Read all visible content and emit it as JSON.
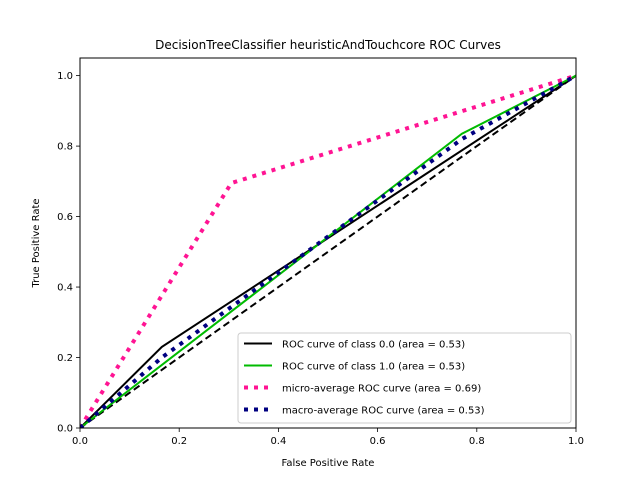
{
  "chart_data": {
    "type": "line",
    "title": "DecisionTreeClassifier heuristicAndTouchcore ROC Curves",
    "xlabel": "False Positive Rate",
    "ylabel": "True Positive Rate",
    "xlim": [
      0.0,
      1.0
    ],
    "ylim": [
      0.0,
      1.05
    ],
    "xticks": [
      0.0,
      0.2,
      0.4,
      0.6,
      0.8,
      1.0
    ],
    "yticks": [
      0.0,
      0.2,
      0.4,
      0.6,
      0.8,
      1.0
    ],
    "xtick_labels": [
      "0.0",
      "0.2",
      "0.4",
      "0.6",
      "0.8",
      "1.0"
    ],
    "ytick_labels": [
      "0.0",
      "0.2",
      "0.4",
      "0.6",
      "0.8",
      "1.0"
    ],
    "grid": false,
    "legend_position": "lower-right",
    "series": [
      {
        "name": "ROC curve of class 0.0 (area = 0.53)",
        "color": "#000000",
        "style": "solid",
        "x": [
          0.0,
          0.165,
          1.0
        ],
        "y": [
          0.0,
          0.23,
          1.0
        ]
      },
      {
        "name": "ROC curve of class 1.0 (area = 0.53)",
        "color": "#00bb00",
        "style": "solid",
        "x": [
          0.0,
          0.77,
          1.0
        ],
        "y": [
          0.0,
          0.835,
          1.0
        ]
      },
      {
        "name": "micro-average ROC curve (area = 0.69)",
        "color": "#ff1493",
        "style": "dotted",
        "x": [
          0.0,
          0.305,
          1.0
        ],
        "y": [
          0.0,
          0.695,
          1.0
        ]
      },
      {
        "name": "macro-average ROC curve (area = 0.53)",
        "color": "#000080",
        "style": "dotted",
        "x": [
          0.0,
          0.165,
          0.77,
          1.0
        ],
        "y": [
          0.0,
          0.2,
          0.82,
          1.0
        ]
      }
    ],
    "reference_line": {
      "color": "#000000",
      "style": "dashed",
      "x": [
        0.0,
        1.0
      ],
      "y": [
        0.0,
        1.0
      ]
    }
  }
}
